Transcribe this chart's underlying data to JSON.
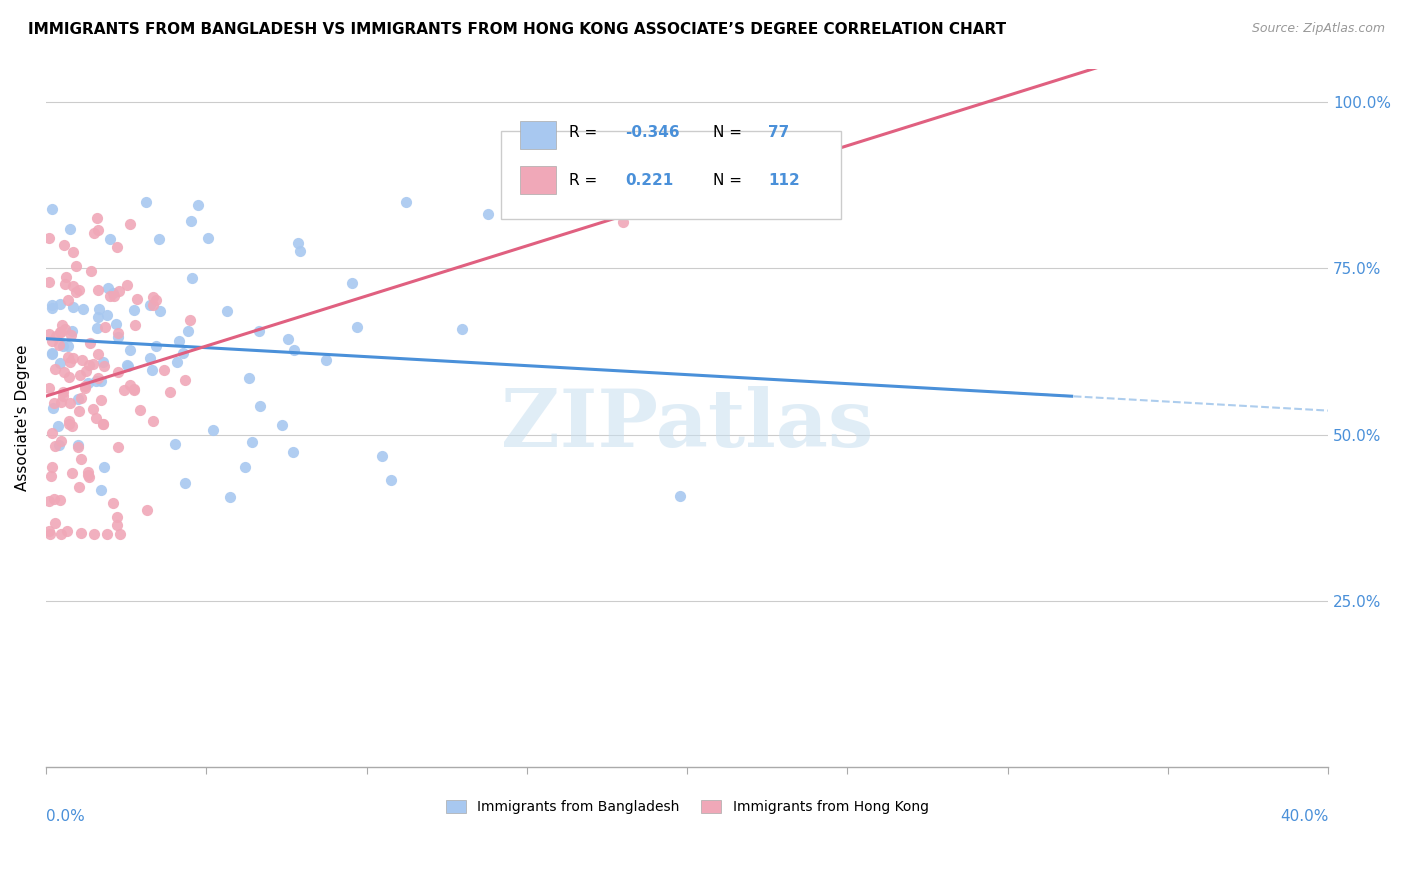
{
  "title": "IMMIGRANTS FROM BANGLADESH VS IMMIGRANTS FROM HONG KONG ASSOCIATE’S DEGREE CORRELATION CHART",
  "source": "Source: ZipAtlas.com",
  "ylabel": "Associate's Degree",
  "y_tick_labels": [
    "25.0%",
    "50.0%",
    "75.0%",
    "100.0%"
  ],
  "y_tick_values": [
    0.25,
    0.5,
    0.75,
    1.0
  ],
  "x_range": [
    0.0,
    0.4
  ],
  "y_range": [
    0.0,
    1.05
  ],
  "legend_r1": "-0.346",
  "legend_n1": "77",
  "legend_r2": "0.221",
  "legend_n2": "112",
  "color_bangladesh": "#a8c8f0",
  "color_hongkong": "#f0a8b8",
  "color_bangladesh_line": "#4a90d9",
  "color_hongkong_line": "#e06080",
  "color_axis_labels": "#4a90d9",
  "color_grid": "#cccccc",
  "watermark_color": "#c8dff0",
  "label_bangladesh": "Immigrants from Bangladesh",
  "label_hongkong": "Immigrants from Hong Kong"
}
